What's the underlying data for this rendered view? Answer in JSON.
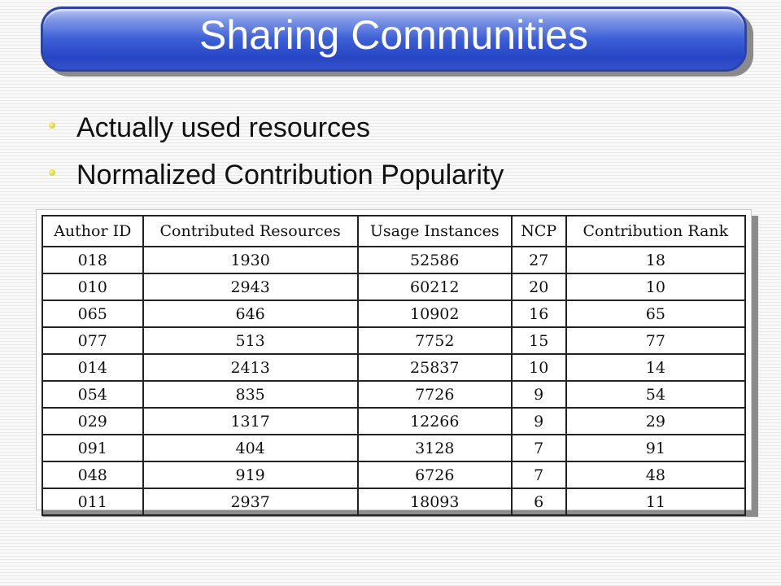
{
  "slide": {
    "title": "Sharing Communities",
    "bullets": [
      "Actually used resources",
      "Normalized Contribution Popularity"
    ]
  },
  "table": {
    "headers": [
      "Author ID",
      "Contributed Resources",
      "Usage Instances",
      "NCP",
      "Contribution Rank"
    ],
    "rows": [
      [
        "018",
        "1930",
        "52586",
        "27",
        "18"
      ],
      [
        "010",
        "2943",
        "60212",
        "20",
        "10"
      ],
      [
        "065",
        "646",
        "10902",
        "16",
        "65"
      ],
      [
        "077",
        "513",
        "7752",
        "15",
        "77"
      ],
      [
        "014",
        "2413",
        "25837",
        "10",
        "14"
      ],
      [
        "054",
        "835",
        "7726",
        "9",
        "54"
      ],
      [
        "029",
        "1317",
        "12266",
        "9",
        "29"
      ],
      [
        "091",
        "404",
        "3128",
        "7",
        "91"
      ],
      [
        "048",
        "919",
        "6726",
        "7",
        "48"
      ],
      [
        "011",
        "2937",
        "18093",
        "6",
        "11"
      ]
    ]
  },
  "colors": {
    "title_bar": "#2746c4",
    "bullet": "#c9c400"
  }
}
